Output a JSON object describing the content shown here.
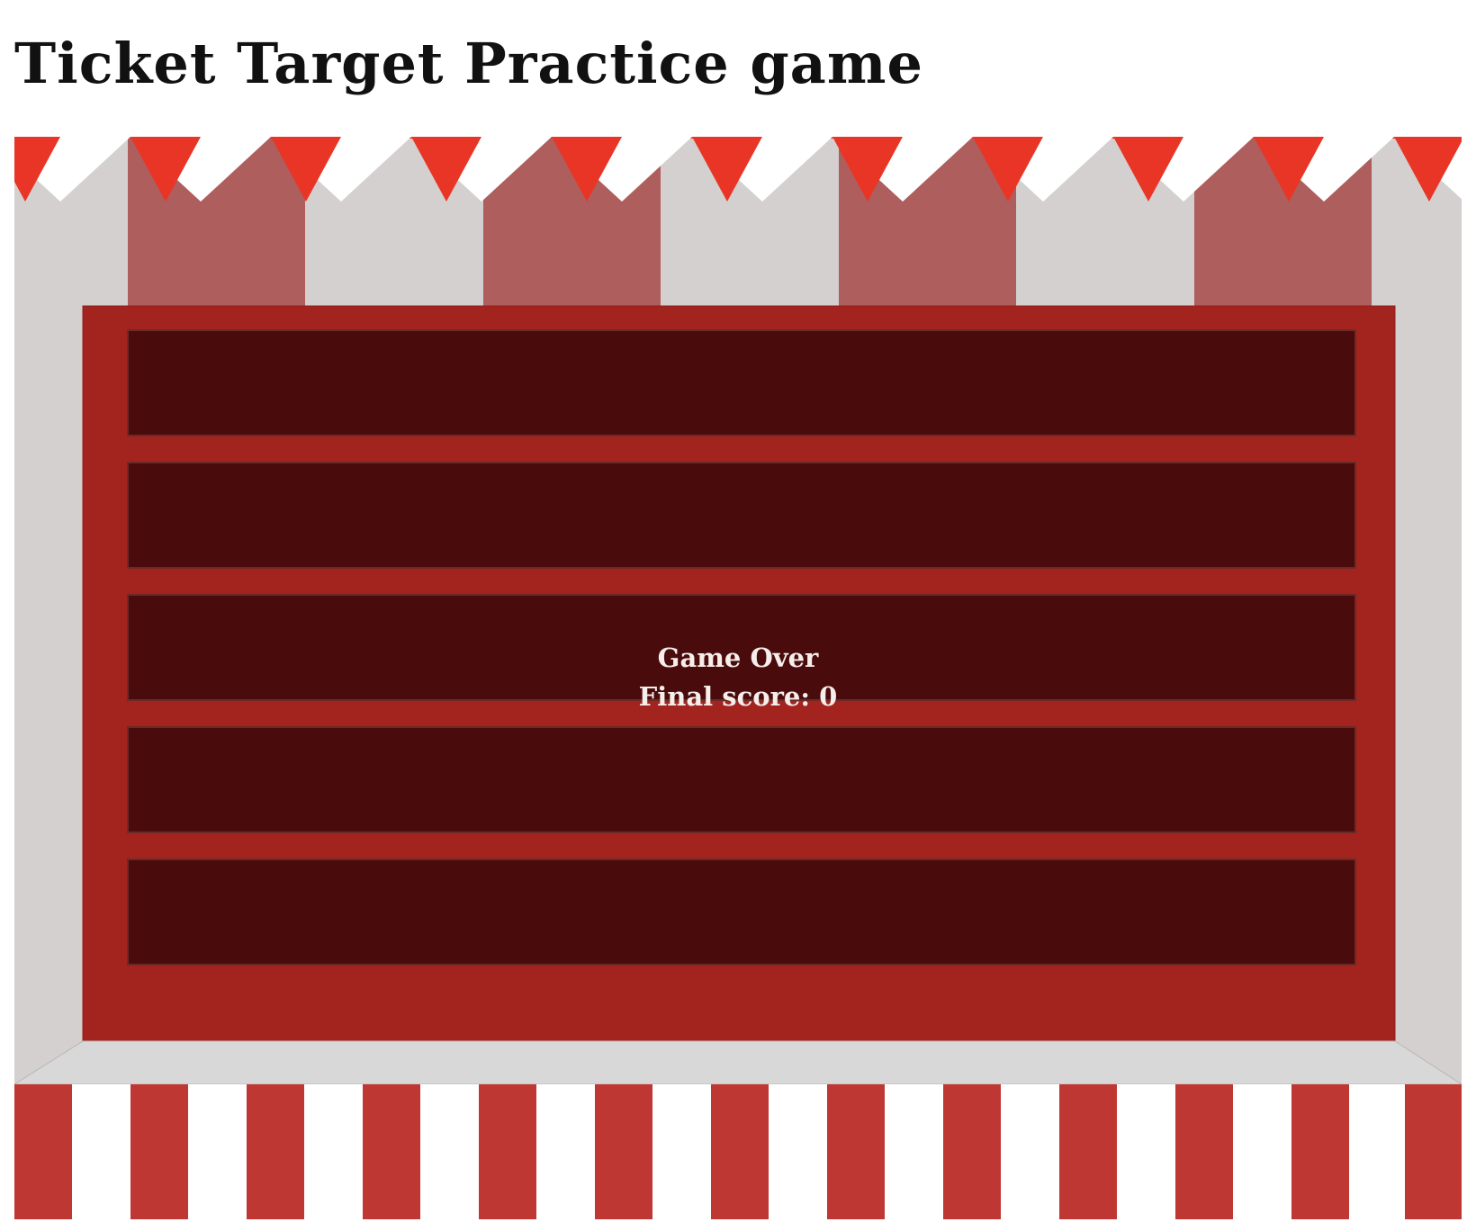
{
  "title": "Ticket Target Practice game",
  "game": {
    "status_text": "Game Over",
    "final_score_label": "Final score:",
    "final_score_value": "0",
    "lanes": 5
  },
  "colors": {
    "backdrop_light": "#d4d0d0",
    "backdrop_rose": "#ad5e5d",
    "pennant_red": "#e93526",
    "board_frame": "#a3241e",
    "lane_dark": "#4a0b0c",
    "counter_top": "#d8d8d8",
    "counter_stripe": "#bf3733",
    "counter_white": "#ffffff"
  }
}
